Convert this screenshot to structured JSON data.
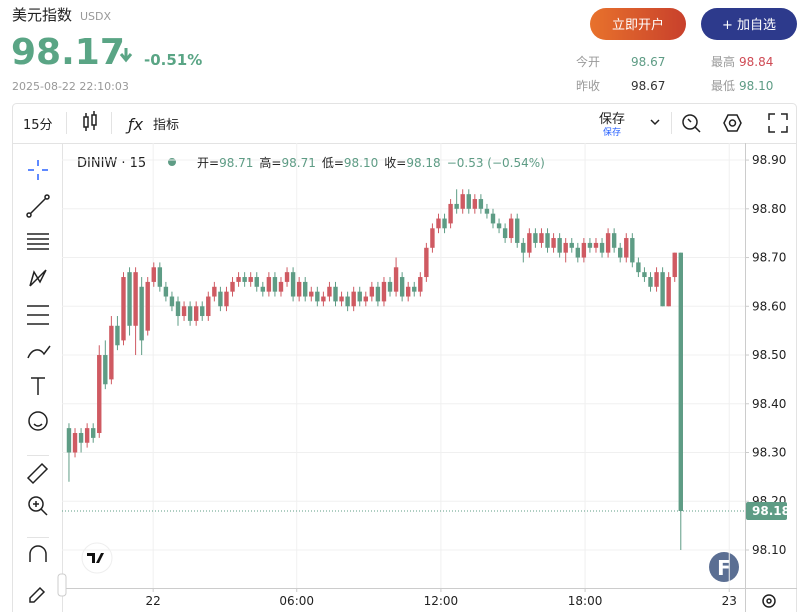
{
  "header": {
    "title": "美元指数",
    "code": "USDX",
    "price": "98.17",
    "change": "-0.51%",
    "time": "2025-08-22 22:10:03",
    "buttons": [
      "立即开户",
      "+ 加自选"
    ],
    "stats": [
      [
        "今开",
        "98.67",
        "最高",
        "98.84"
      ],
      [
        "昨收",
        "98.67",
        "最低",
        "98.10"
      ]
    ]
  },
  "toolbar": {
    "interval": "15分",
    "indicators": "指标",
    "save": "保存",
    "save_sub": "保存"
  },
  "chart_data": {
    "type": "candlestick",
    "symbol": "DINIW · 15",
    "ohlc_legend": [
      {
        "label": "开=",
        "value": "98.71"
      },
      {
        "label": "高=",
        "value": "98.71"
      },
      {
        "label": "低=",
        "value": "98.10"
      },
      {
        "label": "收=",
        "value": "98.18"
      }
    ],
    "change_legend": "−0.53 (−0.54%)",
    "up_color": "#cf5a62",
    "down_color": "#5e9c85",
    "grid": true,
    "current_price": 98.18,
    "ylim": [
      98.022,
      98.935
    ],
    "yticks": [
      {
        "value": 98.9,
        "label": "98.90"
      },
      {
        "value": 98.8,
        "label": "98.80"
      },
      {
        "value": 98.7,
        "label": "98.70"
      },
      {
        "value": 98.6,
        "label": "98.60"
      },
      {
        "value": 98.5,
        "label": "98.50"
      },
      {
        "value": 98.4,
        "label": "98.40"
      },
      {
        "value": 98.3,
        "label": "98.30"
      },
      {
        "value": 98.2,
        "label": "98.20"
      },
      {
        "value": 98.1,
        "label": "98.10"
      }
    ],
    "xlim": [
      -1.15,
      111.6
    ],
    "xticks": [
      {
        "value": 13.9,
        "label": "22"
      },
      {
        "value": 37.6,
        "label": "06:00"
      },
      {
        "value": 61.4,
        "label": "12:00"
      },
      {
        "value": 85.2,
        "label": "18:00"
      },
      {
        "value": 109.0,
        "label": "23"
      }
    ],
    "x": [
      0,
      1,
      2,
      3,
      4,
      5,
      6,
      7,
      8,
      9,
      10,
      11,
      12,
      13,
      14,
      15,
      16,
      17,
      18,
      19,
      20,
      21,
      22,
      23,
      24,
      25,
      26,
      27,
      28,
      29,
      30,
      31,
      32,
      33,
      34,
      35,
      36,
      37,
      38,
      39,
      40,
      41,
      42,
      43,
      44,
      45,
      46,
      47,
      48,
      49,
      50,
      51,
      52,
      53,
      54,
      55,
      56,
      57,
      58,
      59,
      60,
      61,
      62,
      63,
      64,
      65,
      66,
      67,
      68,
      69,
      70,
      71,
      72,
      73,
      74,
      75,
      76,
      77,
      78,
      79,
      80,
      81,
      82,
      83,
      84,
      85,
      86,
      87,
      88,
      89,
      90,
      91,
      92,
      93,
      94,
      95,
      96,
      97,
      98,
      99,
      100,
      101
    ],
    "ohlc": [
      [
        98.35,
        98.36,
        98.24,
        98.3
      ],
      [
        98.3,
        98.35,
        98.29,
        98.34
      ],
      [
        98.34,
        98.35,
        98.3,
        98.32
      ],
      [
        98.32,
        98.36,
        98.31,
        98.35
      ],
      [
        98.35,
        98.36,
        98.32,
        98.33
      ],
      [
        98.34,
        98.52,
        98.33,
        98.5
      ],
      [
        98.5,
        98.53,
        98.43,
        98.44
      ],
      [
        98.45,
        98.58,
        98.44,
        98.56
      ],
      [
        98.56,
        98.58,
        98.51,
        98.52
      ],
      [
        98.53,
        98.67,
        98.52,
        98.66
      ],
      [
        98.67,
        98.68,
        98.54,
        98.56
      ],
      [
        98.56,
        98.68,
        98.5,
        98.67
      ],
      [
        98.64,
        98.66,
        98.5,
        98.53
      ],
      [
        98.55,
        98.66,
        98.54,
        98.65
      ],
      [
        98.65,
        98.69,
        98.64,
        98.68
      ],
      [
        98.68,
        98.69,
        98.63,
        98.64
      ],
      [
        98.64,
        98.65,
        98.61,
        98.62
      ],
      [
        98.62,
        98.63,
        98.59,
        98.6
      ],
      [
        98.61,
        98.62,
        98.56,
        98.58
      ],
      [
        98.58,
        98.61,
        98.57,
        98.6
      ],
      [
        98.6,
        98.61,
        98.56,
        98.57
      ],
      [
        98.57,
        98.61,
        98.56,
        98.6
      ],
      [
        98.6,
        98.61,
        98.57,
        98.58
      ],
      [
        98.58,
        98.63,
        98.57,
        98.62
      ],
      [
        98.62,
        98.65,
        98.61,
        98.64
      ],
      [
        98.63,
        98.64,
        98.59,
        98.6
      ],
      [
        98.6,
        98.64,
        98.59,
        98.63
      ],
      [
        98.63,
        98.66,
        98.62,
        98.65
      ],
      [
        98.65,
        98.67,
        98.64,
        98.66
      ],
      [
        98.66,
        98.67,
        98.64,
        98.65
      ],
      [
        98.65,
        98.67,
        98.64,
        98.66
      ],
      [
        98.66,
        98.67,
        98.63,
        98.64
      ],
      [
        98.64,
        98.65,
        98.62,
        98.63
      ],
      [
        98.63,
        98.67,
        98.62,
        98.66
      ],
      [
        98.66,
        98.67,
        98.62,
        98.63
      ],
      [
        98.63,
        98.66,
        98.62,
        98.65
      ],
      [
        98.65,
        98.68,
        98.64,
        98.67
      ],
      [
        98.67,
        98.68,
        98.61,
        98.62
      ],
      [
        98.62,
        98.66,
        98.61,
        98.65
      ],
      [
        98.65,
        98.66,
        98.61,
        98.62
      ],
      [
        98.62,
        98.64,
        98.61,
        98.63
      ],
      [
        98.63,
        98.64,
        98.6,
        98.61
      ],
      [
        98.61,
        98.63,
        98.6,
        98.62
      ],
      [
        98.62,
        98.65,
        98.61,
        98.64
      ],
      [
        98.64,
        98.65,
        98.6,
        98.61
      ],
      [
        98.61,
        98.63,
        98.6,
        98.62
      ],
      [
        98.62,
        98.63,
        98.59,
        98.6
      ],
      [
        98.6,
        98.64,
        98.59,
        98.63
      ],
      [
        98.63,
        98.64,
        98.6,
        98.61
      ],
      [
        98.61,
        98.63,
        98.6,
        98.62
      ],
      [
        98.62,
        98.65,
        98.61,
        98.64
      ],
      [
        98.64,
        98.65,
        98.6,
        98.61
      ],
      [
        98.61,
        98.66,
        98.6,
        98.65
      ],
      [
        98.65,
        98.66,
        98.62,
        98.63
      ],
      [
        98.63,
        98.7,
        98.62,
        98.68
      ],
      [
        98.66,
        98.67,
        98.61,
        98.62
      ],
      [
        98.62,
        98.65,
        98.61,
        98.64
      ],
      [
        98.64,
        98.65,
        98.62,
        98.63
      ],
      [
        98.63,
        98.67,
        98.62,
        98.66
      ],
      [
        98.66,
        98.73,
        98.65,
        98.72
      ],
      [
        98.72,
        98.77,
        98.71,
        98.76
      ],
      [
        98.76,
        98.79,
        98.75,
        98.78
      ],
      [
        98.78,
        98.79,
        98.75,
        98.76
      ],
      [
        98.77,
        98.82,
        98.76,
        98.81
      ],
      [
        98.81,
        98.84,
        98.79,
        98.8
      ],
      [
        98.8,
        98.84,
        98.79,
        98.83
      ],
      [
        98.83,
        98.84,
        98.79,
        98.8
      ],
      [
        98.8,
        98.83,
        98.79,
        98.82
      ],
      [
        98.82,
        98.83,
        98.79,
        98.8
      ],
      [
        98.8,
        98.81,
        98.78,
        98.79
      ],
      [
        98.79,
        98.8,
        98.76,
        98.77
      ],
      [
        98.77,
        98.78,
        98.75,
        98.76
      ],
      [
        98.76,
        98.77,
        98.73,
        98.74
      ],
      [
        98.74,
        98.79,
        98.73,
        98.78
      ],
      [
        98.78,
        98.79,
        98.72,
        98.73
      ],
      [
        98.73,
        98.74,
        98.69,
        98.71
      ],
      [
        98.71,
        98.76,
        98.7,
        98.75
      ],
      [
        98.75,
        98.76,
        98.72,
        98.73
      ],
      [
        98.73,
        98.76,
        98.72,
        98.75
      ],
      [
        98.75,
        98.76,
        98.71,
        98.72
      ],
      [
        98.72,
        98.75,
        98.71,
        98.74
      ],
      [
        98.74,
        98.75,
        98.7,
        98.71
      ],
      [
        98.71,
        98.74,
        98.69,
        98.73
      ],
      [
        98.73,
        98.74,
        98.71,
        98.72
      ],
      [
        98.72,
        98.73,
        98.69,
        98.7
      ],
      [
        98.7,
        98.74,
        98.69,
        98.73
      ],
      [
        98.73,
        98.74,
        98.71,
        98.72
      ],
      [
        98.72,
        98.74,
        98.71,
        98.73
      ],
      [
        98.73,
        98.74,
        98.7,
        98.71
      ],
      [
        98.71,
        98.76,
        98.7,
        98.75
      ],
      [
        98.75,
        98.76,
        98.71,
        98.72
      ],
      [
        98.72,
        98.73,
        98.69,
        98.7
      ],
      [
        98.7,
        98.75,
        98.69,
        98.74
      ],
      [
        98.74,
        98.75,
        98.68,
        98.69
      ],
      [
        98.69,
        98.7,
        98.66,
        98.67
      ],
      [
        98.67,
        98.68,
        98.65,
        98.66
      ],
      [
        98.66,
        98.67,
        98.63,
        98.64
      ],
      [
        98.64,
        98.68,
        98.63,
        98.67
      ],
      [
        98.67,
        98.68,
        98.6,
        98.6
      ],
      [
        98.6,
        98.67,
        98.6,
        98.66
      ],
      [
        98.66,
        98.71,
        98.65,
        98.71
      ],
      [
        98.71,
        98.71,
        98.1,
        98.18
      ]
    ]
  }
}
